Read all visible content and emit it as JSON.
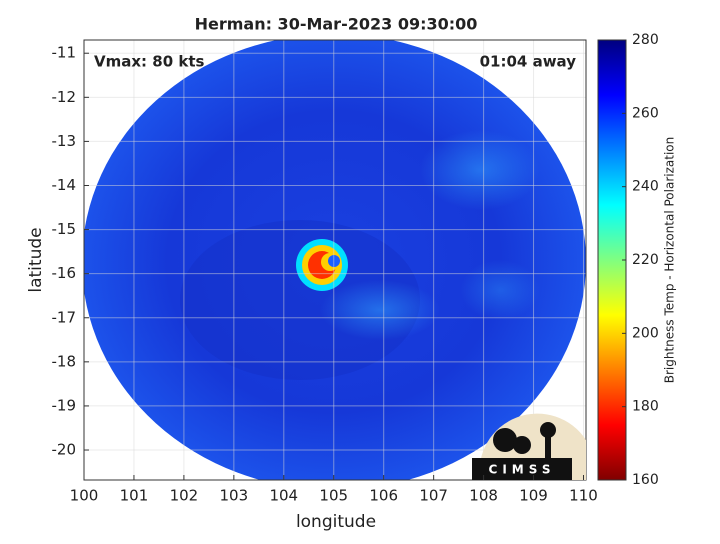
{
  "chart_data": {
    "type": "heatmap",
    "title": "Herman: 30-Mar-2023 09:30:00",
    "annotations": [
      "Vmax: 80 kts",
      "01:04 away"
    ],
    "xlabel": "longitude",
    "ylabel": "latitude",
    "xlim": [
      100,
      110.05
    ],
    "xticks": [
      100,
      101,
      102,
      103,
      104,
      105,
      106,
      107,
      108,
      109,
      110
    ],
    "ylim": [
      -20.68,
      -10.7
    ],
    "yticks": [
      -20,
      -19,
      -18,
      -17,
      -16,
      -15,
      -14,
      -13,
      -12,
      -11
    ],
    "grid": true,
    "colorbar": {
      "label": "Brightness Temp - Horizontal Polarization",
      "lim": [
        160,
        280
      ],
      "ticks": [
        160,
        180,
        200,
        220,
        240,
        260,
        280
      ]
    },
    "logo": "CIMSS"
  }
}
